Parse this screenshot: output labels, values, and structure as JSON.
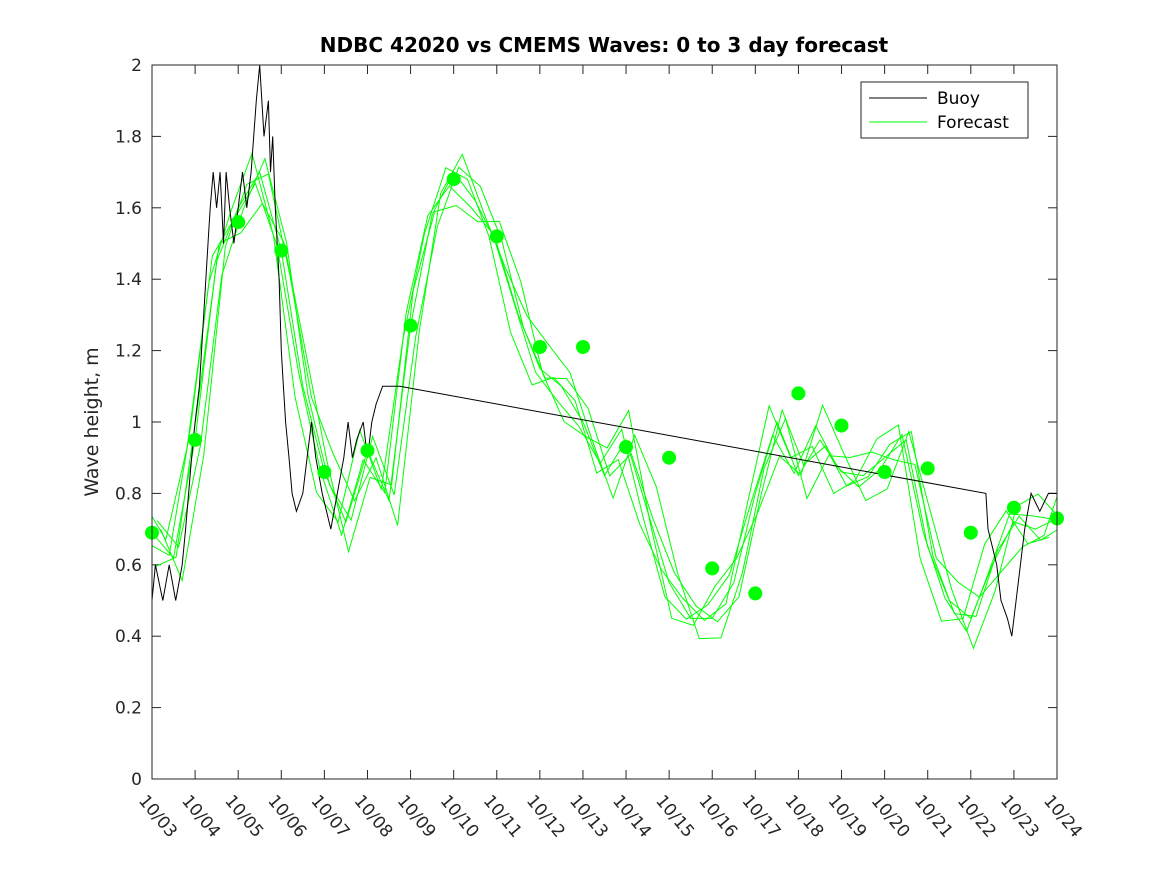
{
  "chart_data": {
    "type": "line",
    "title": "NDBC 42020 vs CMEMS Waves: 0 to 3 day forecast",
    "xlabel": "",
    "ylabel": "Wave height, m",
    "xlim": [
      0,
      21
    ],
    "ylim": [
      0,
      2
    ],
    "x_ticks": [
      0,
      1,
      2,
      3,
      4,
      5,
      6,
      7,
      8,
      9,
      10,
      11,
      12,
      13,
      14,
      15,
      16,
      17,
      18,
      19,
      20,
      21
    ],
    "x_tick_labels": [
      "10/03",
      "10/04",
      "10/05",
      "10/06",
      "10/07",
      "10/08",
      "10/09",
      "10/10",
      "10/11",
      "10/12",
      "10/13",
      "10/14",
      "10/15",
      "10/16",
      "10/17",
      "10/18",
      "10/19",
      "10/20",
      "10/21",
      "10/22",
      "10/23",
      "10/24"
    ],
    "y_ticks": [
      0,
      0.2,
      0.4,
      0.6,
      0.8,
      1,
      1.2,
      1.4,
      1.6,
      1.8,
      2
    ],
    "y_tick_labels": [
      "0",
      "0.2",
      "0.4",
      "0.6",
      "0.8",
      "1",
      "1.2",
      "1.4",
      "1.6",
      "1.8",
      "2"
    ],
    "legend": {
      "position": "top-right",
      "entries": [
        "Buoy",
        "Forecast"
      ]
    },
    "colors": {
      "buoy": "#000000",
      "forecast": "#00ff00",
      "forecast_points": "#00ff00"
    },
    "series": [
      {
        "name": "Buoy",
        "x": [
          0,
          0.08,
          0.25,
          0.4,
          0.55,
          0.7,
          0.78,
          0.85,
          0.92,
          1.0,
          1.1,
          1.2,
          1.3,
          1.35,
          1.42,
          1.5,
          1.58,
          1.66,
          1.72,
          1.8,
          1.9,
          2.0,
          2.1,
          2.2,
          2.3,
          2.42,
          2.5,
          2.6,
          2.7,
          2.75,
          2.8,
          2.86,
          2.95,
          3.0,
          3.05,
          3.1,
          3.18,
          3.25,
          3.35,
          3.5,
          3.6,
          3.7,
          3.8,
          3.95,
          4.05,
          4.15,
          4.3,
          4.45,
          4.55,
          4.65,
          4.75,
          4.9,
          5.0,
          5.1,
          5.2,
          5.35,
          5.5,
          5.6,
          5.7,
          5.75,
          19.35,
          19.4,
          19.5,
          19.6,
          19.7,
          19.85,
          19.95,
          20.05,
          20.15,
          20.25,
          20.4,
          20.6,
          20.8,
          21.0
        ],
        "y": [
          0.5,
          0.6,
          0.5,
          0.6,
          0.5,
          0.6,
          0.7,
          0.8,
          0.9,
          1.0,
          1.1,
          1.3,
          1.5,
          1.6,
          1.7,
          1.6,
          1.7,
          1.5,
          1.7,
          1.6,
          1.5,
          1.6,
          1.7,
          1.6,
          1.7,
          1.9,
          2.0,
          1.8,
          1.9,
          1.7,
          1.8,
          1.6,
          1.4,
          1.2,
          1.1,
          1.0,
          0.9,
          0.8,
          0.75,
          0.8,
          0.9,
          1.0,
          0.9,
          0.8,
          0.75,
          0.7,
          0.8,
          0.9,
          1.0,
          0.9,
          0.95,
          1.0,
          0.9,
          1.0,
          1.05,
          1.1,
          1.1,
          1.1,
          1.1,
          1.1,
          0.8,
          0.7,
          0.65,
          0.6,
          0.5,
          0.45,
          0.4,
          0.5,
          0.6,
          0.7,
          0.8,
          0.75,
          0.8,
          0.8
        ]
      },
      {
        "name": "Forecast",
        "x": [
          0,
          0.5,
          1.0,
          1.5,
          2.0,
          2.5,
          3.0,
          3.5,
          4.0,
          4.5,
          5.0,
          5.5,
          6.0,
          6.5,
          7.0,
          7.5,
          8.0,
          8.5,
          9.0,
          9.5,
          10.0,
          10.5,
          11.0,
          11.5,
          12.0,
          12.5,
          13.0,
          13.5,
          14.0,
          14.5,
          15.0,
          15.5,
          16.0,
          16.5,
          17.0,
          17.5,
          18.0,
          18.5,
          19.0,
          19.5,
          20.0,
          20.5,
          21.0
        ],
        "y": [
          0.69,
          0.62,
          0.95,
          1.45,
          1.6,
          1.7,
          1.48,
          1.1,
          0.86,
          0.72,
          0.92,
          0.78,
          1.27,
          1.58,
          1.7,
          1.62,
          1.5,
          1.3,
          1.15,
          1.1,
          1.0,
          0.85,
          0.95,
          0.75,
          0.55,
          0.45,
          0.45,
          0.55,
          0.8,
          1.0,
          0.85,
          0.95,
          0.86,
          0.85,
          0.9,
          0.95,
          0.65,
          0.5,
          0.45,
          0.6,
          0.72,
          0.7,
          0.73
        ]
      }
    ],
    "points": {
      "name": "Forecast analysis points",
      "x": [
        0,
        1,
        2,
        3,
        4,
        5,
        6,
        7,
        8,
        9,
        10,
        11,
        12,
        13,
        14,
        15,
        16,
        17,
        18,
        19,
        20,
        21
      ],
      "y": [
        0.69,
        0.95,
        1.56,
        1.48,
        0.86,
        0.92,
        1.27,
        1.68,
        1.52,
        1.21,
        1.21,
        0.93,
        0.9,
        0.59,
        0.52,
        1.08,
        0.99,
        0.86,
        0.87,
        0.69,
        0.76,
        0.73
      ]
    }
  }
}
